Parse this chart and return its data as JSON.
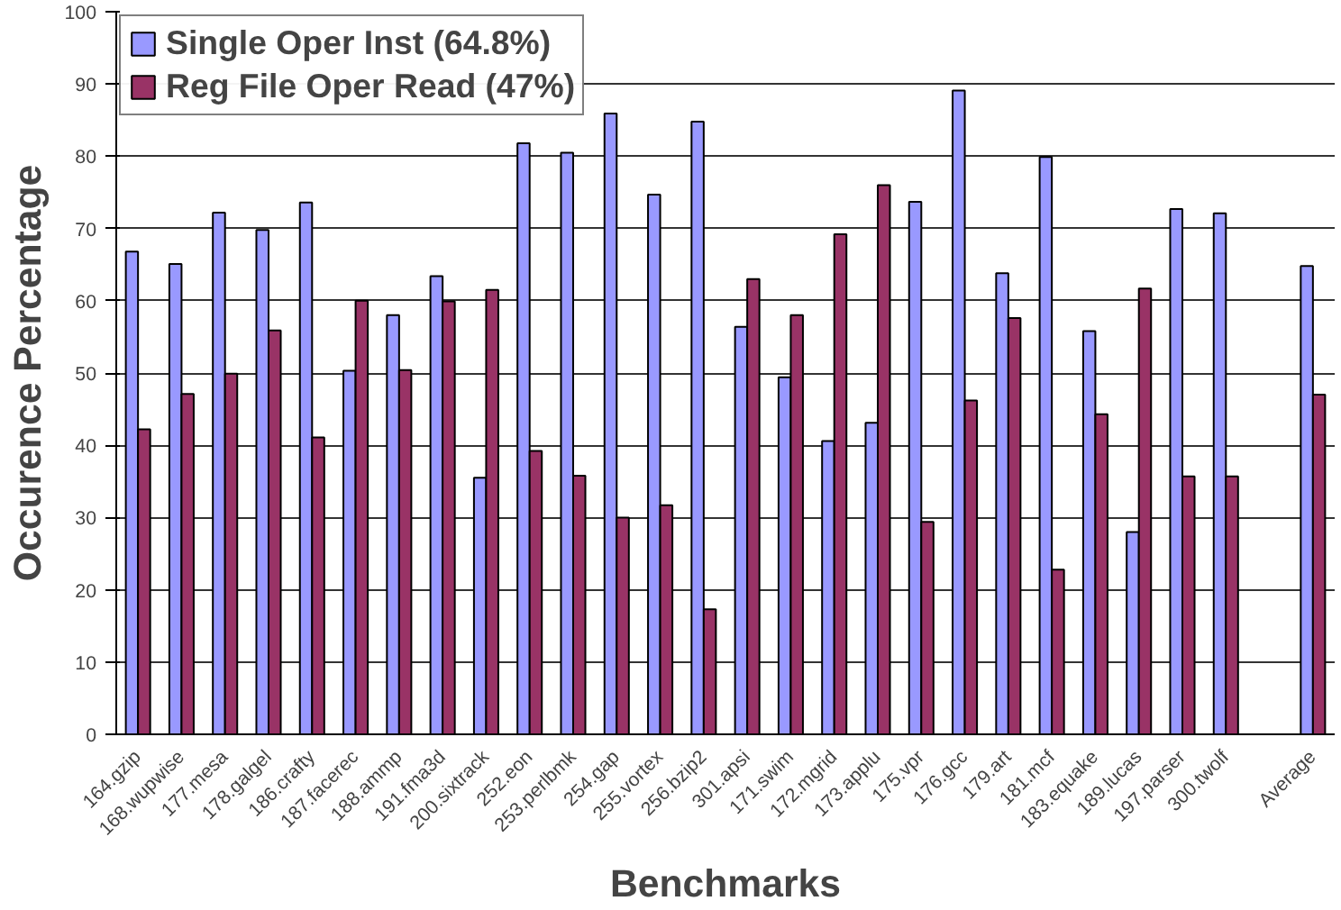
{
  "chart_data": {
    "type": "bar",
    "xlabel": "Benchmarks",
    "ylabel": "Occurence Percentage",
    "categories": [
      "164.gzip",
      "168.wupwise",
      "177.mesa",
      "178.galgel",
      "186.crafty",
      "187.facerec",
      "188.ammp",
      "191.fma3d",
      "200.sixtrack",
      "252.eon",
      "253.perlbmk",
      "254.gap",
      "255.vortex",
      "256.bzip2",
      "301.apsi",
      "171.swim",
      "172.mgrid",
      "173.applu",
      "175.vpr",
      "176.gcc",
      "179.art",
      "181.mcf",
      "183.equake",
      "189.lucas",
      "197.parser",
      "300.twolf",
      null,
      "Average"
    ],
    "series": [
      {
        "name": "Single Oper Inst (64.8%)",
        "color": "#9999ff",
        "values": [
          66.8,
          65.1,
          72.2,
          69.8,
          73.6,
          50.3,
          58.0,
          63.4,
          35.5,
          81.8,
          80.5,
          85.9,
          74.7,
          84.8,
          56.4,
          49.4,
          40.6,
          43.1,
          73.7,
          89.1,
          63.8,
          79.9,
          55.8,
          28.0,
          72.7,
          72.1,
          null,
          64.8
        ]
      },
      {
        "name": "Reg File Oper Read (47%)",
        "color": "#993366",
        "values": [
          42.2,
          47.1,
          49.9,
          55.9,
          41.1,
          60.0,
          50.4,
          59.9,
          61.5,
          39.2,
          35.8,
          30.0,
          31.7,
          17.3,
          63.0,
          58.0,
          69.2,
          76.0,
          29.4,
          46.2,
          57.6,
          22.8,
          44.3,
          61.7,
          35.7,
          35.7,
          null,
          47.0
        ]
      }
    ],
    "ylim": [
      0,
      100
    ],
    "yticks": [
      0,
      10,
      20,
      30,
      40,
      50,
      60,
      70,
      80,
      90,
      100
    ],
    "grid": "y",
    "legend": "top left"
  }
}
